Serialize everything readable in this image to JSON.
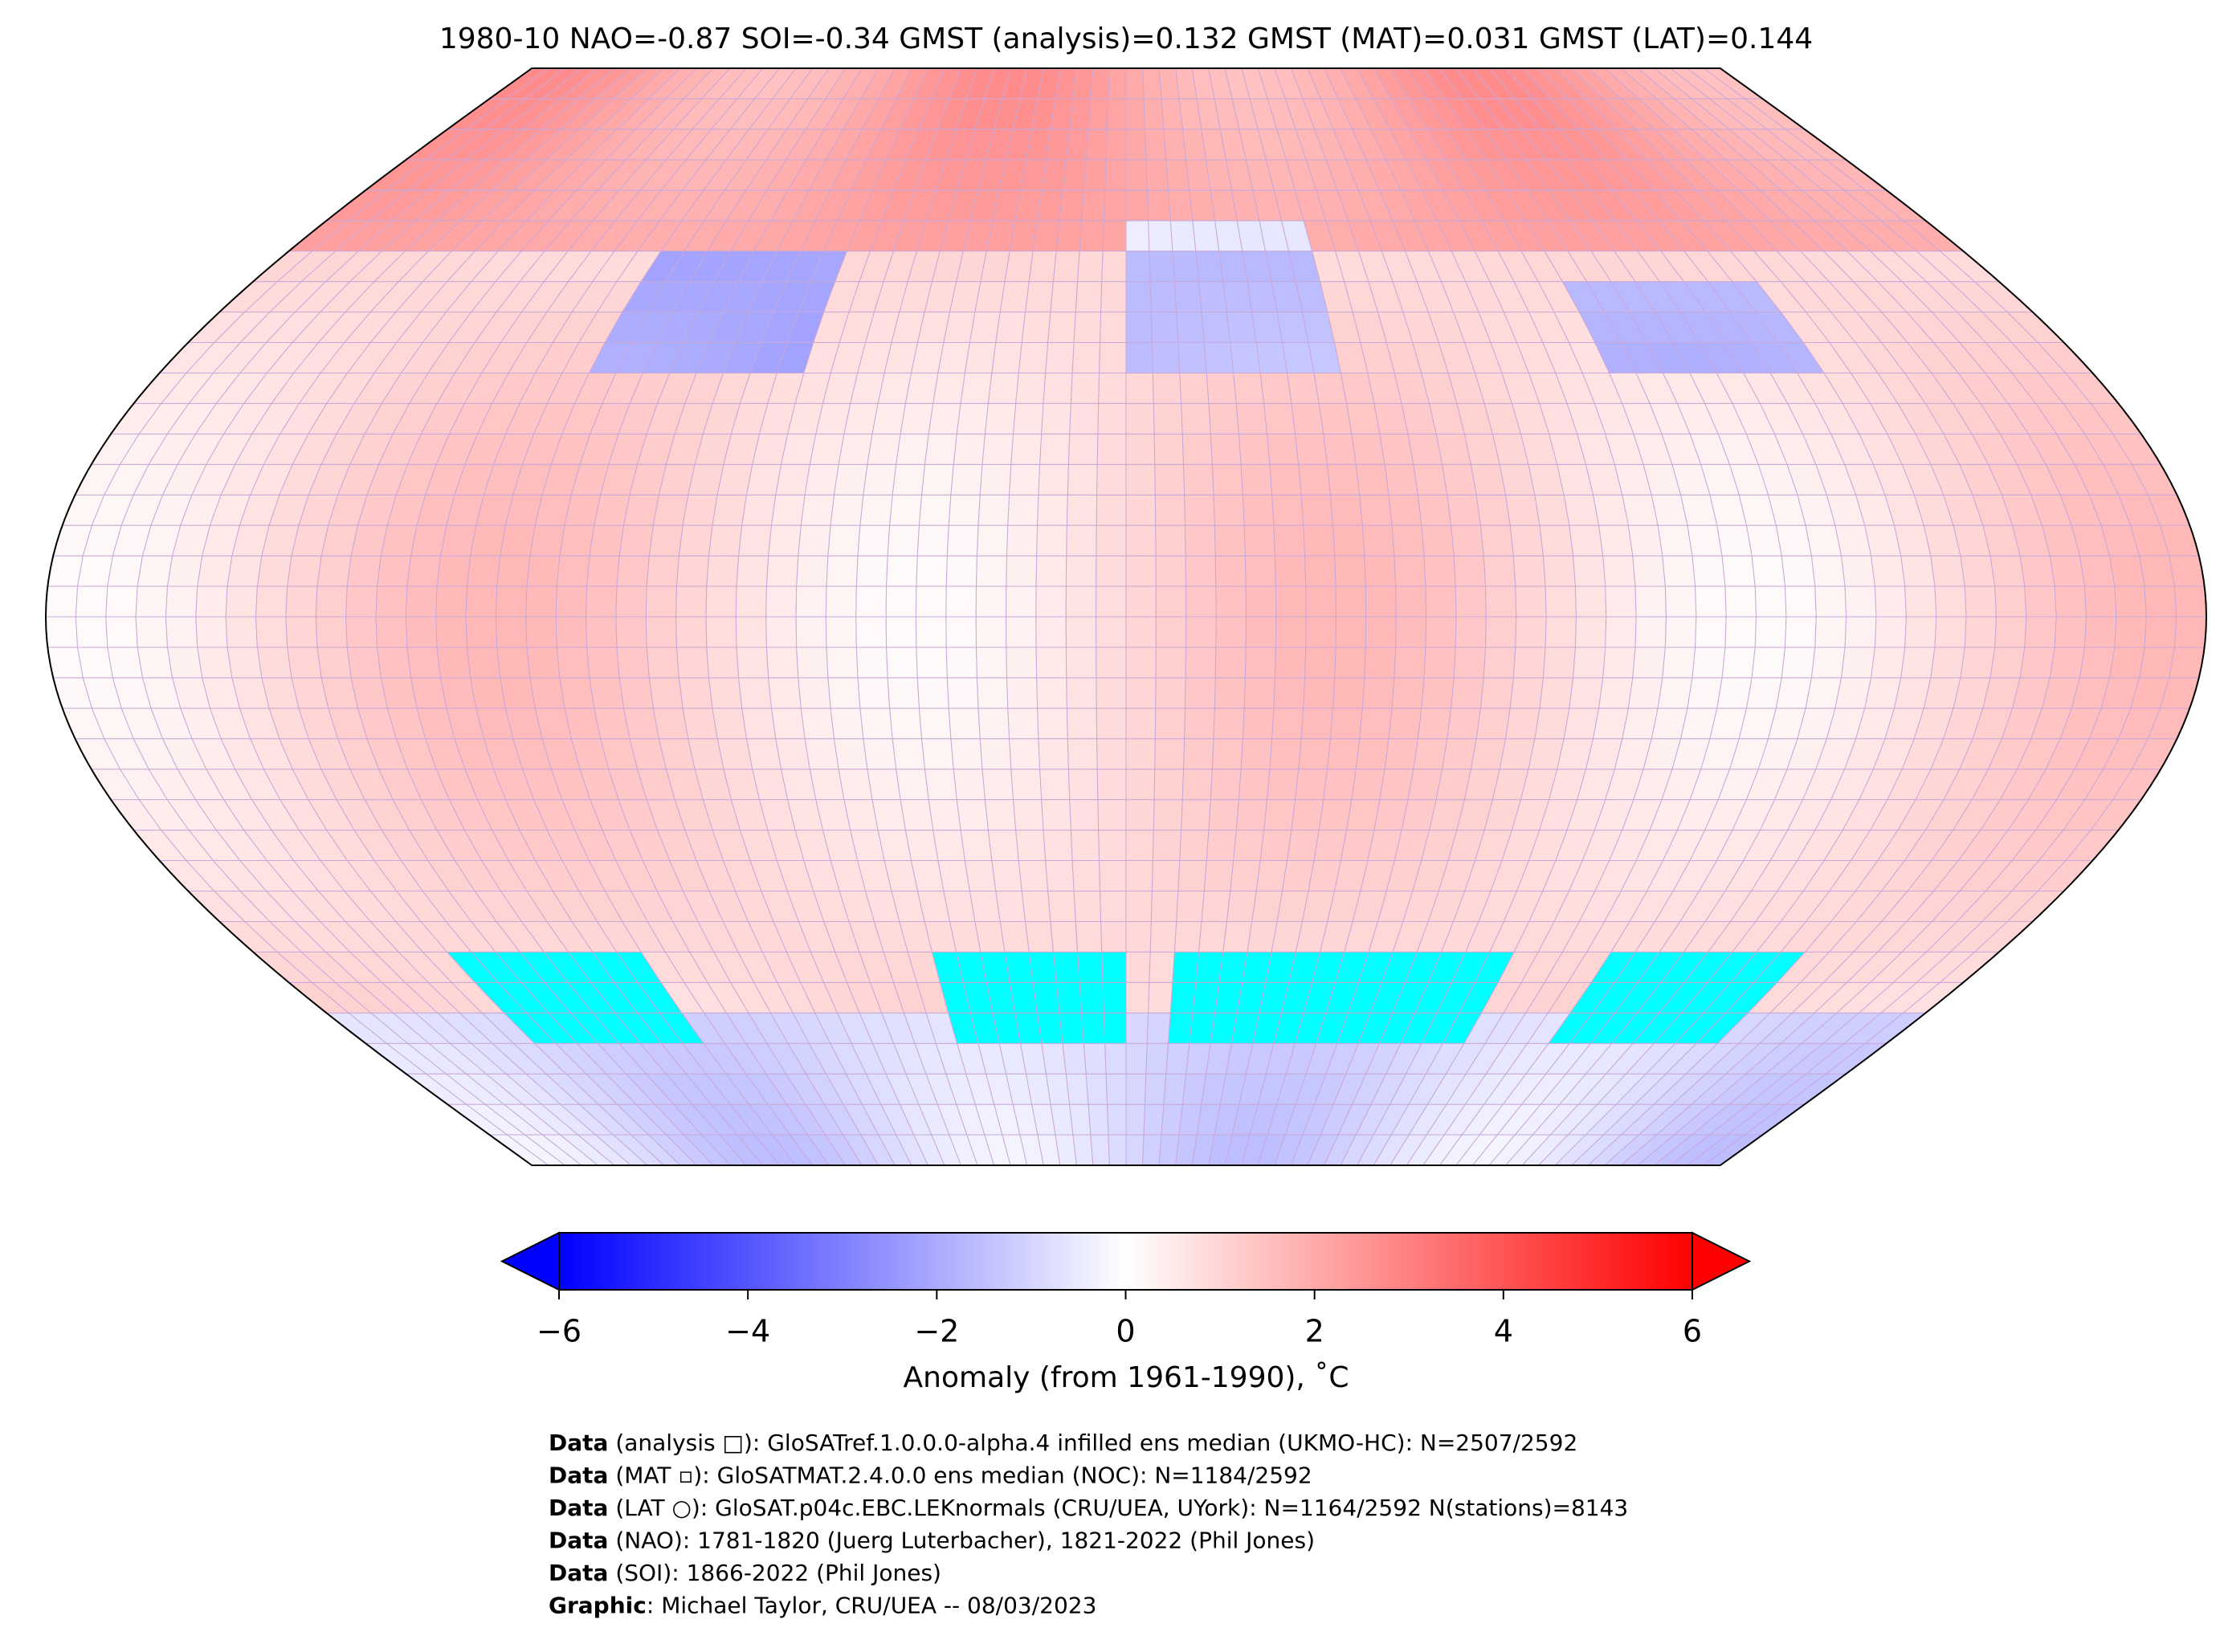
{
  "title": "1980-10 NAO=-0.87 SOI=-0.34 GMST (analysis)=0.132 GMST (MAT)=0.031 GMST (LAT)=0.144",
  "colorbar": {
    "label": "Anomaly (from 1961-1990), ˚C",
    "xlim": [
      -6,
      6
    ],
    "xticks": [
      {
        "value": -6,
        "label": "−6"
      },
      {
        "value": -4,
        "label": "−4"
      },
      {
        "value": -2,
        "label": "−2"
      },
      0,
      2,
      4,
      6
    ],
    "colors": [
      "#0000ff",
      "#ffffff",
      "#ff0000"
    ]
  },
  "footer": [
    {
      "label": "Data",
      "text": " (analysis □): GloSATref.1.0.0.0-alpha.4 infilled ens median (UKMO-HC): N=2507/2592"
    },
    {
      "label": "Data",
      "text": " (MAT ▫): GloSATMAT.2.4.0.0 ens median (NOC): N=1184/2592"
    },
    {
      "label": "Data",
      "text": " (LAT ○): GloSAT.p04c.EBC.LEKnormals (CRU/UEA, UYork): N=1164/2592 N(stations)=8143"
    },
    {
      "label": "Data",
      "text": " (NAO): 1781-1820 (Juerg Luterbacher), 1821-2022 (Phil Jones)"
    },
    {
      "label": "Data",
      "text": " (SOI): 1866-2022 (Phil Jones)"
    },
    {
      "label": "Graphic",
      "text": ": Michael Taylor, CRU/UEA -- 08/03/2023"
    }
  ]
}
